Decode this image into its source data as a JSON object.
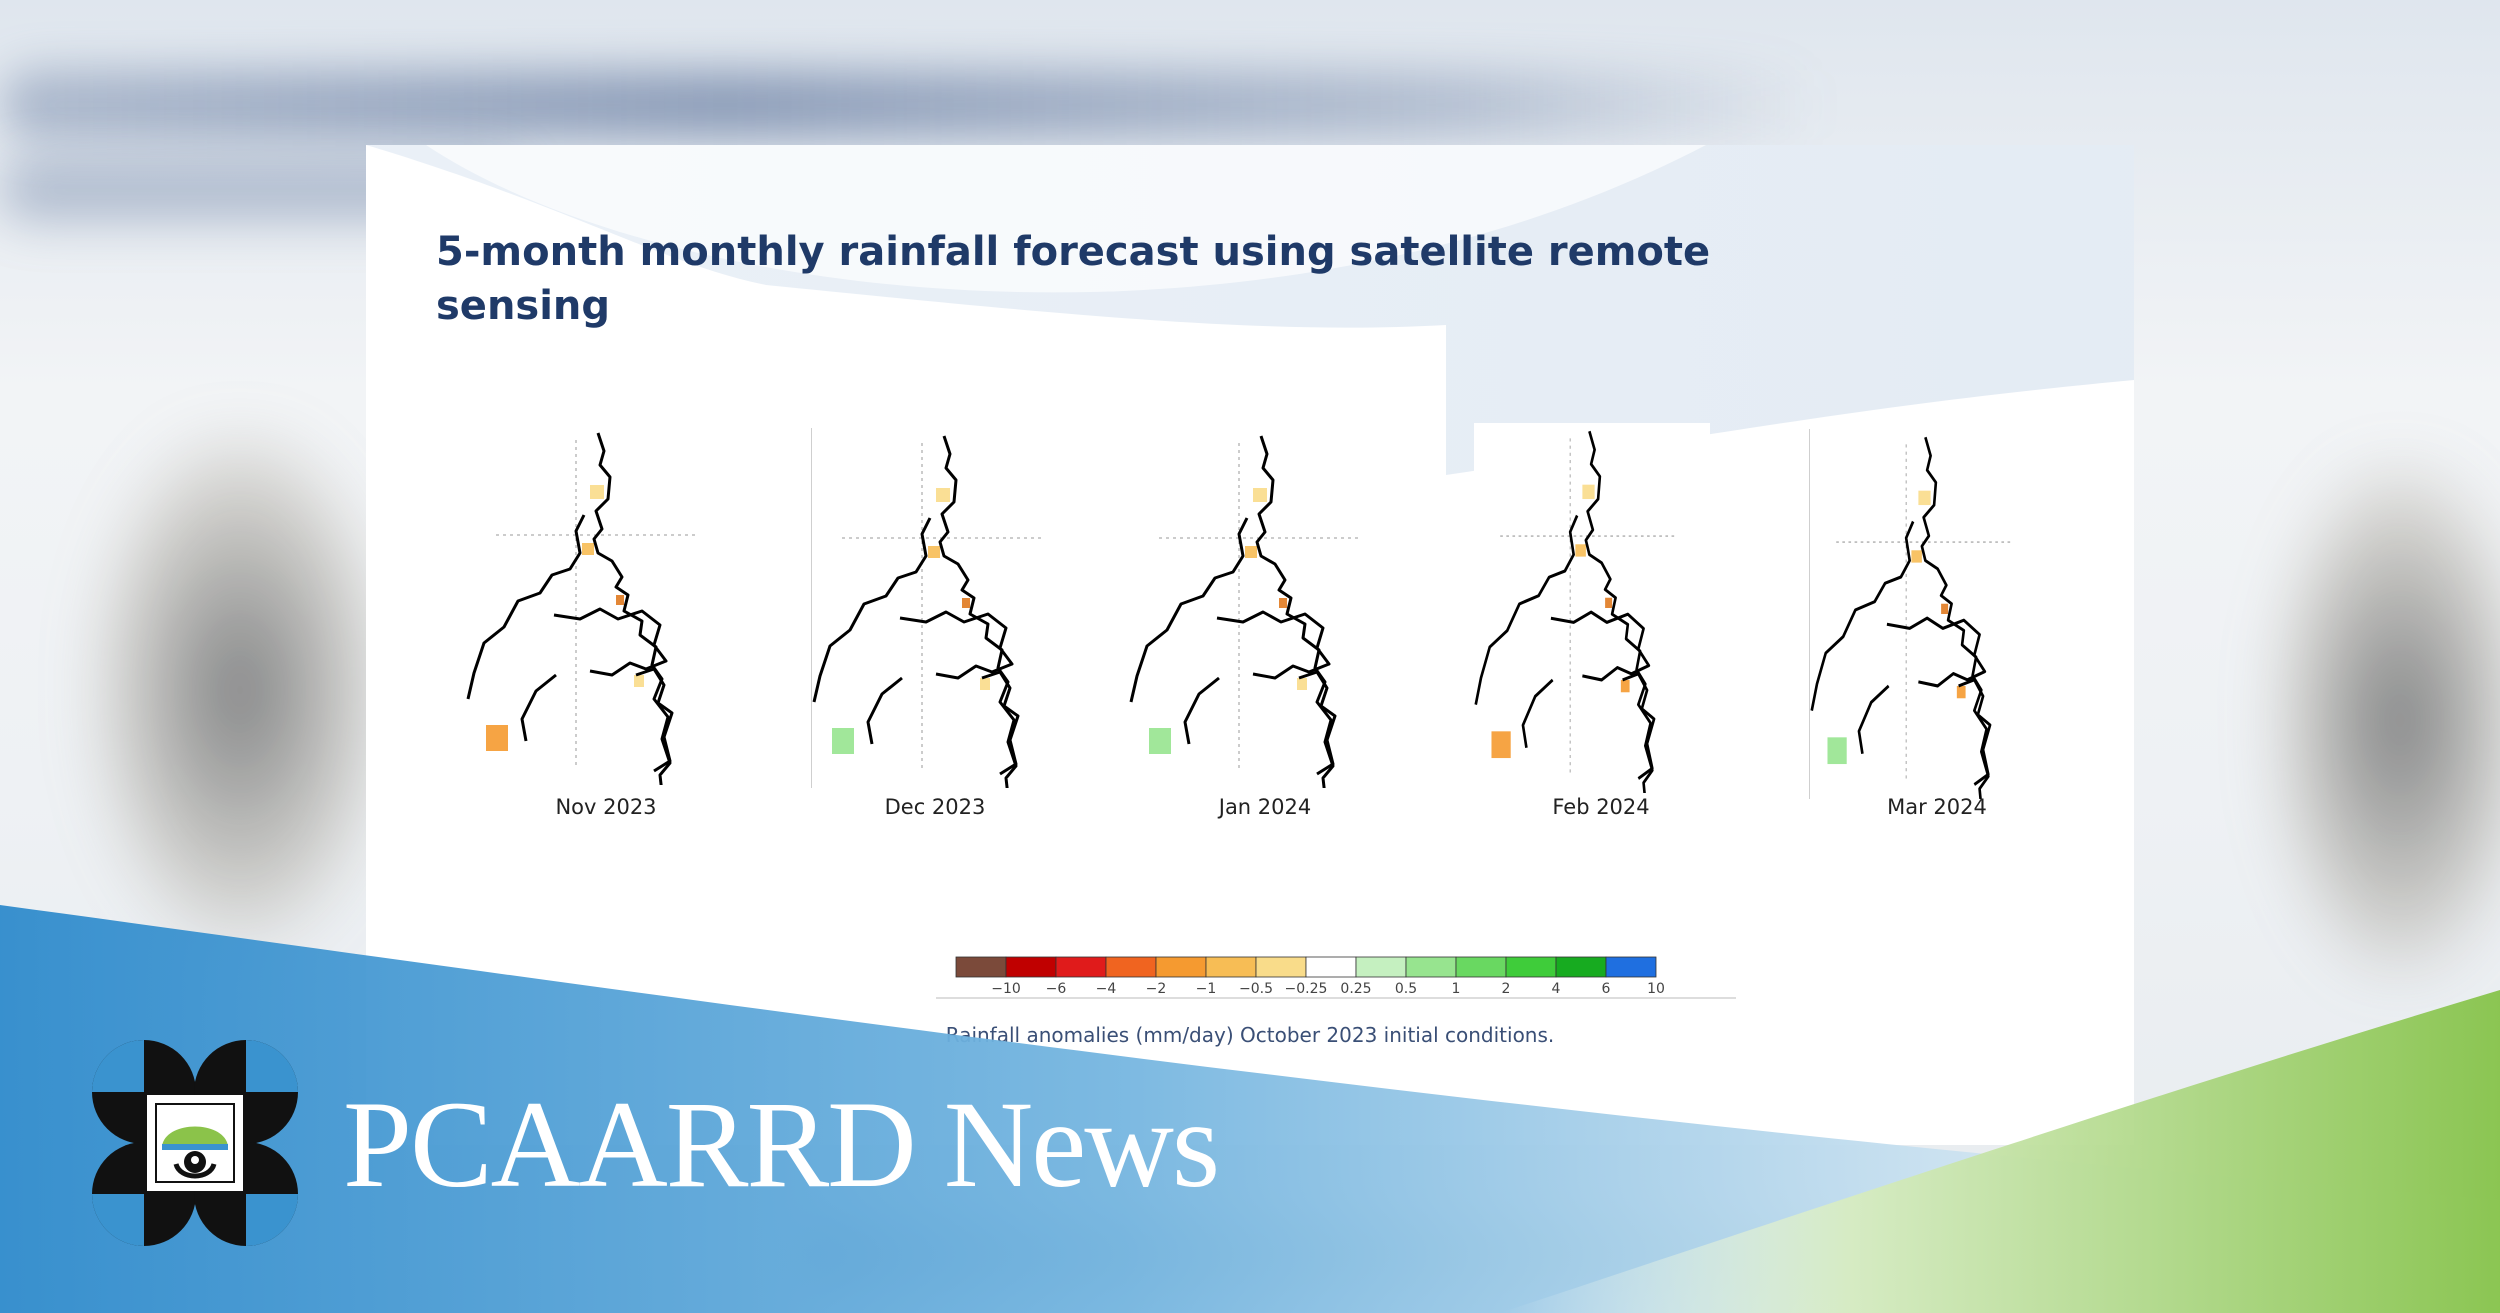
{
  "slide": {
    "title": "5-month monthly rainfall forecast using satellite remote sensing",
    "panels": [
      {
        "label": "Nov 2023"
      },
      {
        "label": "Dec 2023"
      },
      {
        "label": "Jan 2024"
      },
      {
        "label": "Feb 2024"
      },
      {
        "label": "Mar 2024"
      }
    ],
    "legend": {
      "ticks": [
        "−10",
        "−6",
        "−4",
        "−2",
        "−1",
        "−0.5",
        "−0.25",
        "0.25",
        "0.5",
        "1",
        "2",
        "4",
        "6",
        "10"
      ],
      "colors": [
        "#7b4a3a",
        "#c00000",
        "#e01b1b",
        "#f06420",
        "#f59a30",
        "#f7bd55",
        "#f9dc8a",
        "#ffffff",
        "#c5f0c0",
        "#97e48f",
        "#69d861",
        "#3fcc3a",
        "#17ab20",
        "#1f6fe0"
      ],
      "caption": "Rainfall anomalies (mm/day) October 2023 initial conditions."
    }
  },
  "brand": {
    "name": "PCAARRD News",
    "colors": {
      "blue": "#3a93cf",
      "green": "#8bc34a",
      "navy": "#1f3a68"
    }
  }
}
